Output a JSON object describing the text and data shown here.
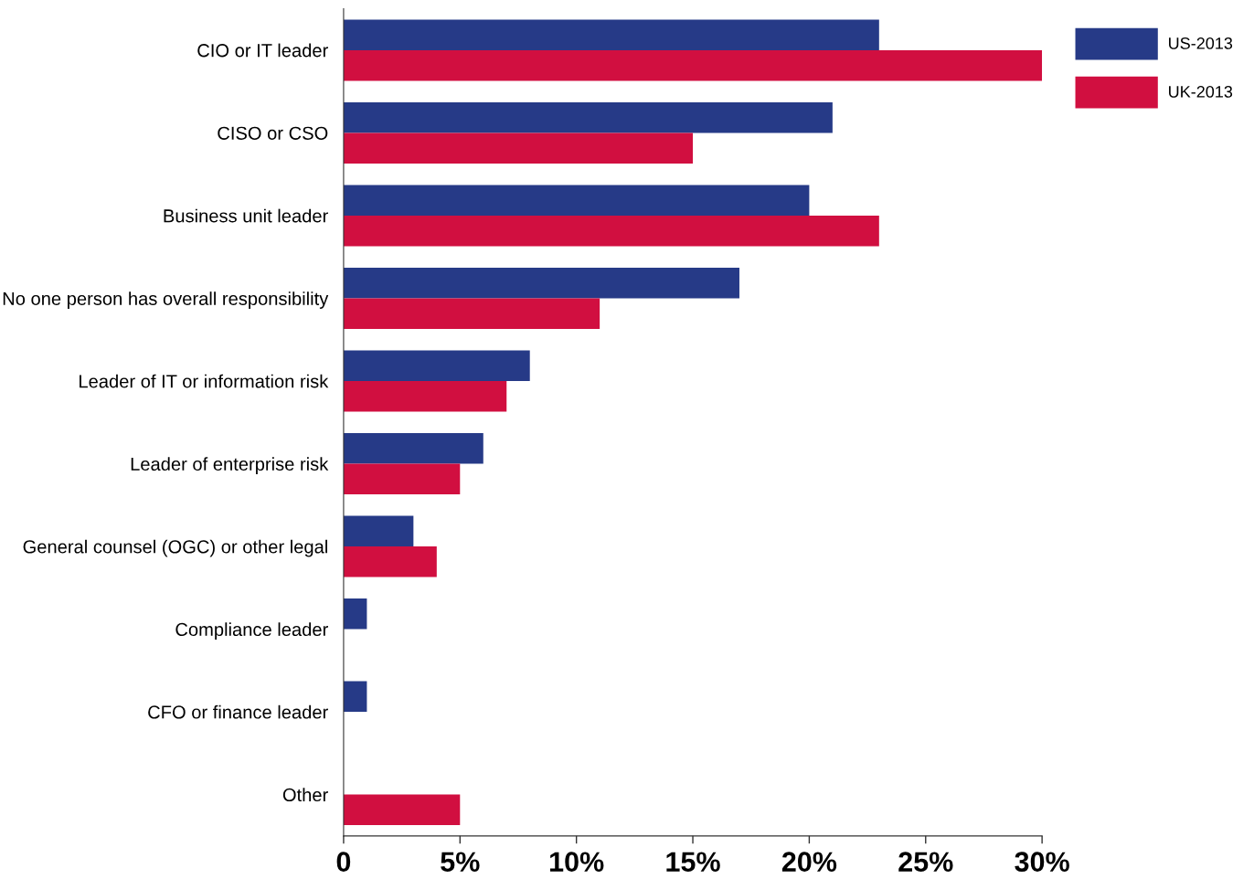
{
  "chart_data": {
    "type": "bar",
    "orientation": "horizontal",
    "categories": [
      "CIO or IT leader",
      "CISO or CSO",
      "Business unit leader",
      "No one person has overall responsibility",
      "Leader of IT or information risk",
      "Leader of enterprise risk",
      "General counsel (OGC) or other legal",
      "Compliance leader",
      "CFO or finance leader",
      "Other"
    ],
    "series": [
      {
        "name": "US-2013",
        "color": "#263a87",
        "values": [
          23,
          21,
          20,
          17,
          8,
          6,
          3,
          1,
          1,
          0
        ]
      },
      {
        "name": "UK-2013",
        "color": "#d10f40",
        "values": [
          30,
          15,
          23,
          11,
          7,
          5,
          4,
          0,
          0,
          5
        ]
      }
    ],
    "xlim": [
      0,
      30
    ],
    "xticks": [
      {
        "value": 0,
        "label": "0"
      },
      {
        "value": 5,
        "label": "5%"
      },
      {
        "value": 10,
        "label": "10%"
      },
      {
        "value": 15,
        "label": "15%"
      },
      {
        "value": 20,
        "label": "20%"
      },
      {
        "value": 25,
        "label": "25%"
      },
      {
        "value": 30,
        "label": "30%"
      }
    ],
    "grid": false,
    "legend": "top right"
  }
}
